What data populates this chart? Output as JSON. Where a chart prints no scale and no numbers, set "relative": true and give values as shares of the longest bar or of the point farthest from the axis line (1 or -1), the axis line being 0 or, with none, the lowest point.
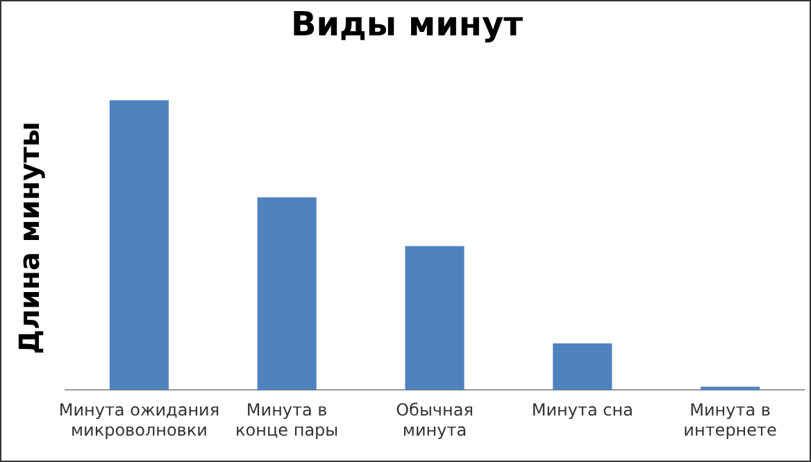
{
  "chart_data": {
    "type": "bar",
    "title": "Виды минут",
    "ylabel": "Длина минуты",
    "categories": [
      "Минута ожидания микроволновки",
      "Минута в конце пары",
      "Обычная минута",
      "Минута сна",
      "Минута в интернете"
    ],
    "values": [
      1,
      0.665,
      0.497,
      0.161,
      0.012
    ],
    "color": "#4f81bd",
    "relative": true,
    "grid": false,
    "legend": false
  }
}
